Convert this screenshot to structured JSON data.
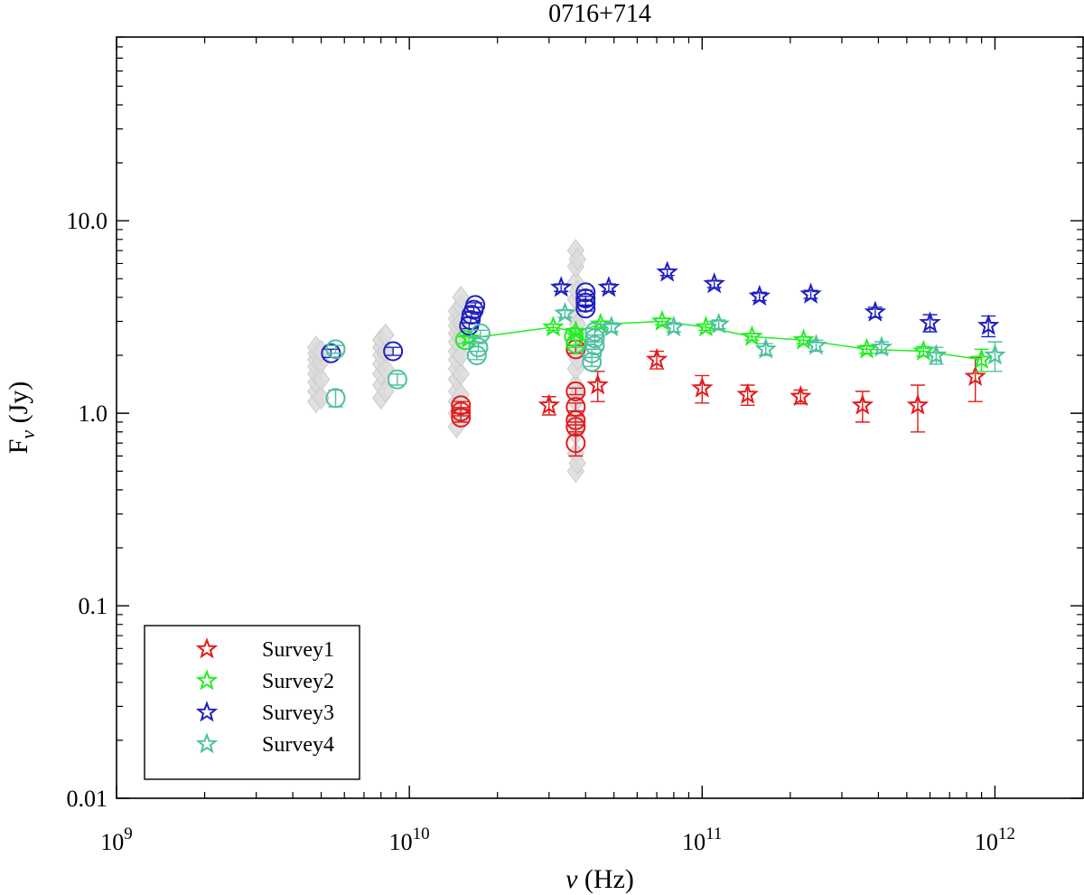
{
  "chart_data": {
    "type": "scatter",
    "title": "0716+714",
    "xlabel_symbol": "ν",
    "xlabel_unit": " (Hz)",
    "ylabel_main": "F",
    "ylabel_sub": "ν",
    "ylabel_unit": " (Jy)",
    "xscale": "log",
    "yscale": "log",
    "xlim": [
      1000000000.0,
      2000000000000.0
    ],
    "ylim": [
      0.01,
      90
    ],
    "x_ticks": [
      {
        "value": 1000000000.0,
        "base": "10",
        "exp": "9"
      },
      {
        "value": 10000000000.0,
        "base": "10",
        "exp": "10"
      },
      {
        "value": 100000000000.0,
        "base": "10",
        "exp": "11"
      },
      {
        "value": 1000000000000.0,
        "base": "10",
        "exp": "12"
      }
    ],
    "y_ticks": [
      {
        "value": 0.01,
        "label": "0.01"
      },
      {
        "value": 0.1,
        "label": "0.1"
      },
      {
        "value": 1,
        "label": "1.0"
      },
      {
        "value": 10,
        "label": "10.0"
      }
    ],
    "legend_position": "bottom-left",
    "background_points": {
      "name": "archival",
      "color": "#dcdcdc",
      "points": [
        [
          4800000000.0,
          1.15
        ],
        [
          4800000000.0,
          1.3
        ],
        [
          4800000000.0,
          1.45
        ],
        [
          4800000000.0,
          1.6
        ],
        [
          4800000000.0,
          1.75
        ],
        [
          4800000000.0,
          1.9
        ],
        [
          4800000000.0,
          2.05
        ],
        [
          4800000000.0,
          2.2
        ],
        [
          5000000000.0,
          1.2
        ],
        [
          5000000000.0,
          1.5
        ],
        [
          5000000000.0,
          1.85
        ],
        [
          5000000000.0,
          2.1
        ],
        [
          8000000000.0,
          1.2
        ],
        [
          8000000000.0,
          1.4
        ],
        [
          8000000000.0,
          1.6
        ],
        [
          8000000000.0,
          1.8
        ],
        [
          8000000000.0,
          2.0
        ],
        [
          8000000000.0,
          2.2
        ],
        [
          8000000000.0,
          2.4
        ],
        [
          8300000000.0,
          1.3
        ],
        [
          8300000000.0,
          1.7
        ],
        [
          8300000000.0,
          2.1
        ],
        [
          8300000000.0,
          2.55
        ],
        [
          14500000000.0,
          0.85
        ],
        [
          14500000000.0,
          1.0
        ],
        [
          14500000000.0,
          1.15
        ],
        [
          14500000000.0,
          1.3
        ],
        [
          14500000000.0,
          1.5
        ],
        [
          14500000000.0,
          1.7
        ],
        [
          14500000000.0,
          1.9
        ],
        [
          14500000000.0,
          2.1
        ],
        [
          14500000000.0,
          2.35
        ],
        [
          14500000000.0,
          2.6
        ],
        [
          14500000000.0,
          2.85
        ],
        [
          14500000000.0,
          3.1
        ],
        [
          14500000000.0,
          3.4
        ],
        [
          15000000000.0,
          0.95
        ],
        [
          15000000000.0,
          1.25
        ],
        [
          15000000000.0,
          1.6
        ],
        [
          15000000000.0,
          2.0
        ],
        [
          15000000000.0,
          2.5
        ],
        [
          15000000000.0,
          3.0
        ],
        [
          15000000000.0,
          3.6
        ],
        [
          15000000000.0,
          4.0
        ],
        [
          37000000000.0,
          0.5
        ],
        [
          37000000000.0,
          0.62
        ],
        [
          37000000000.0,
          0.78
        ],
        [
          37000000000.0,
          0.95
        ],
        [
          37000000000.0,
          1.15
        ],
        [
          37000000000.0,
          1.4
        ],
        [
          37000000000.0,
          1.7
        ],
        [
          37000000000.0,
          2.1
        ],
        [
          37000000000.0,
          2.6
        ],
        [
          37000000000.0,
          3.2
        ],
        [
          37000000000.0,
          3.9
        ],
        [
          37000000000.0,
          4.8
        ],
        [
          37000000000.0,
          5.8
        ],
        [
          37000000000.0,
          7.0
        ],
        [
          37500000000.0,
          0.55
        ],
        [
          37500000000.0,
          0.85
        ],
        [
          37500000000.0,
          1.25
        ],
        [
          37500000000.0,
          1.9
        ],
        [
          37500000000.0,
          2.9
        ],
        [
          37500000000.0,
          4.3
        ],
        [
          37500000000.0,
          6.3
        ]
      ]
    },
    "series": [
      {
        "name": "Survey1",
        "color": "#e41a1c",
        "marker": "star",
        "connected": false,
        "points": [
          [
            30000000000.0,
            1.1,
            0.12
          ],
          [
            44000000000.0,
            1.4,
            0.25
          ],
          [
            70000000000.0,
            1.9,
            0.2
          ],
          [
            100000000000.0,
            1.35,
            0.22
          ],
          [
            143000000000.0,
            1.25,
            0.15
          ],
          [
            217000000000.0,
            1.22,
            0.1
          ],
          [
            353000000000.0,
            1.1,
            0.2
          ],
          [
            545000000000.0,
            1.1,
            0.3
          ],
          [
            857000000000.0,
            1.55,
            0.4
          ]
        ],
        "circles": [
          [
            15000000000.0,
            0.95,
            0.05
          ],
          [
            15000000000.0,
            1.02,
            0.05
          ],
          [
            15000000000.0,
            1.1,
            0.05
          ],
          [
            37000000000.0,
            0.7,
            0.1
          ],
          [
            37000000000.0,
            0.85,
            0.05
          ],
          [
            37000000000.0,
            0.92,
            0.05
          ],
          [
            37000000000.0,
            1.08,
            0.05
          ],
          [
            37000000000.0,
            1.3,
            0.05
          ],
          [
            37000000000.0,
            2.15,
            0.1
          ]
        ]
      },
      {
        "name": "Survey2",
        "color": "#22ee22",
        "marker": "star",
        "connected": true,
        "points": [
          [
            16000000000.0,
            2.45,
            0.1
          ],
          [
            31000000000.0,
            2.8,
            0.1
          ],
          [
            37000000000.0,
            2.65,
            0.1
          ],
          [
            45000000000.0,
            2.9,
            0.1
          ],
          [
            73000000000.0,
            3.0,
            0.12
          ],
          [
            103000000000.0,
            2.8,
            0.1
          ],
          [
            148000000000.0,
            2.5,
            0.1
          ],
          [
            222000000000.0,
            2.4,
            0.1
          ],
          [
            365000000000.0,
            2.15,
            0.1
          ],
          [
            570000000000.0,
            2.1,
            0.12
          ],
          [
            900000000000.0,
            1.9,
            0.25
          ]
        ],
        "circles": [
          [
            15500000000.0,
            2.4,
            0.1
          ],
          [
            36500000000.0,
            2.5,
            0.1
          ],
          [
            37000000000.0,
            2.3,
            0.1
          ]
        ]
      },
      {
        "name": "Survey3",
        "color": "#1f1fbf",
        "marker": "star",
        "connected": false,
        "points": [
          [
            33000000000.0,
            4.5,
            0.2
          ],
          [
            48000000000.0,
            4.5,
            0.2
          ],
          [
            76000000000.0,
            5.4,
            0.2
          ],
          [
            110000000000.0,
            4.7,
            0.2
          ],
          [
            157000000000.0,
            4.05,
            0.2
          ],
          [
            235000000000.0,
            4.15,
            0.2
          ],
          [
            390000000000.0,
            3.35,
            0.2
          ],
          [
            600000000000.0,
            2.95,
            0.3
          ],
          [
            950000000000.0,
            2.85,
            0.35
          ]
        ],
        "circles": [
          [
            5400000000.0,
            2.05,
            0.1
          ],
          [
            8800000000.0,
            2.1,
            0.1
          ],
          [
            16000000000.0,
            2.85,
            0.1
          ],
          [
            16200000000.0,
            3.05,
            0.1
          ],
          [
            16300000000.0,
            3.25,
            0.1
          ],
          [
            16600000000.0,
            3.45,
            0.1
          ],
          [
            16800000000.0,
            3.65,
            0.1
          ],
          [
            40000000000.0,
            3.5,
            0.1
          ],
          [
            40000000000.0,
            3.75,
            0.1
          ],
          [
            40000000000.0,
            3.95,
            0.1
          ],
          [
            40000000000.0,
            4.25,
            0.1
          ]
        ]
      },
      {
        "name": "Survey4",
        "color": "#4dc0a0",
        "marker": "star",
        "connected": false,
        "points": [
          [
            34000000000.0,
            3.3,
            0.15
          ],
          [
            49000000000.0,
            2.8,
            0.15
          ],
          [
            80000000000.0,
            2.8,
            0.15
          ],
          [
            114000000000.0,
            2.9,
            0.15
          ],
          [
            165000000000.0,
            2.15,
            0.15
          ],
          [
            245000000000.0,
            2.25,
            0.15
          ],
          [
            410000000000.0,
            2.2,
            0.15
          ],
          [
            630000000000.0,
            2.0,
            0.2
          ],
          [
            1000000000000.0,
            2.0,
            0.35
          ]
        ],
        "circles": [
          [
            5600000000.0,
            2.15,
            0.1
          ],
          [
            5600000000.0,
            1.2,
            0.12
          ],
          [
            9100000000.0,
            1.5,
            0.1
          ],
          [
            17000000000.0,
            2.0,
            0.1
          ],
          [
            17200000000.0,
            2.2,
            0.1
          ],
          [
            17500000000.0,
            2.6,
            0.1
          ],
          [
            42000000000.0,
            1.85,
            0.1
          ],
          [
            42000000000.0,
            2.05,
            0.1
          ],
          [
            43000000000.0,
            2.25,
            0.1
          ],
          [
            43000000000.0,
            2.45,
            0.1
          ],
          [
            43000000000.0,
            2.65,
            0.1
          ]
        ]
      }
    ]
  }
}
